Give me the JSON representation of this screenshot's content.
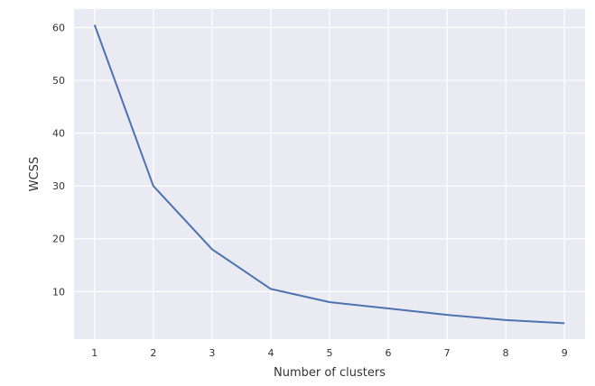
{
  "chart_data": {
    "type": "line",
    "title": "",
    "xlabel": "Number of clusters",
    "ylabel": "WCSS",
    "x": [
      1,
      2,
      3,
      4,
      5,
      6,
      7,
      8,
      9
    ],
    "y": [
      60.5,
      30.0,
      18.0,
      10.5,
      8.0,
      6.8,
      5.6,
      4.6,
      4.0
    ],
    "xticks": [
      "1",
      "2",
      "3",
      "4",
      "5",
      "6",
      "7",
      "8",
      "9"
    ],
    "yticks": [
      "10",
      "20",
      "30",
      "40",
      "50",
      "60"
    ],
    "ytick_values": [
      10,
      20,
      30,
      40,
      50,
      60
    ],
    "xlim": [
      0.65,
      9.35
    ],
    "ylim": [
      1.0,
      63.5
    ],
    "grid": true,
    "legend": "none",
    "colors": {
      "plot_background": "#eaeaf2",
      "grid": "#ffffff",
      "line": "#4c72b0"
    }
  }
}
